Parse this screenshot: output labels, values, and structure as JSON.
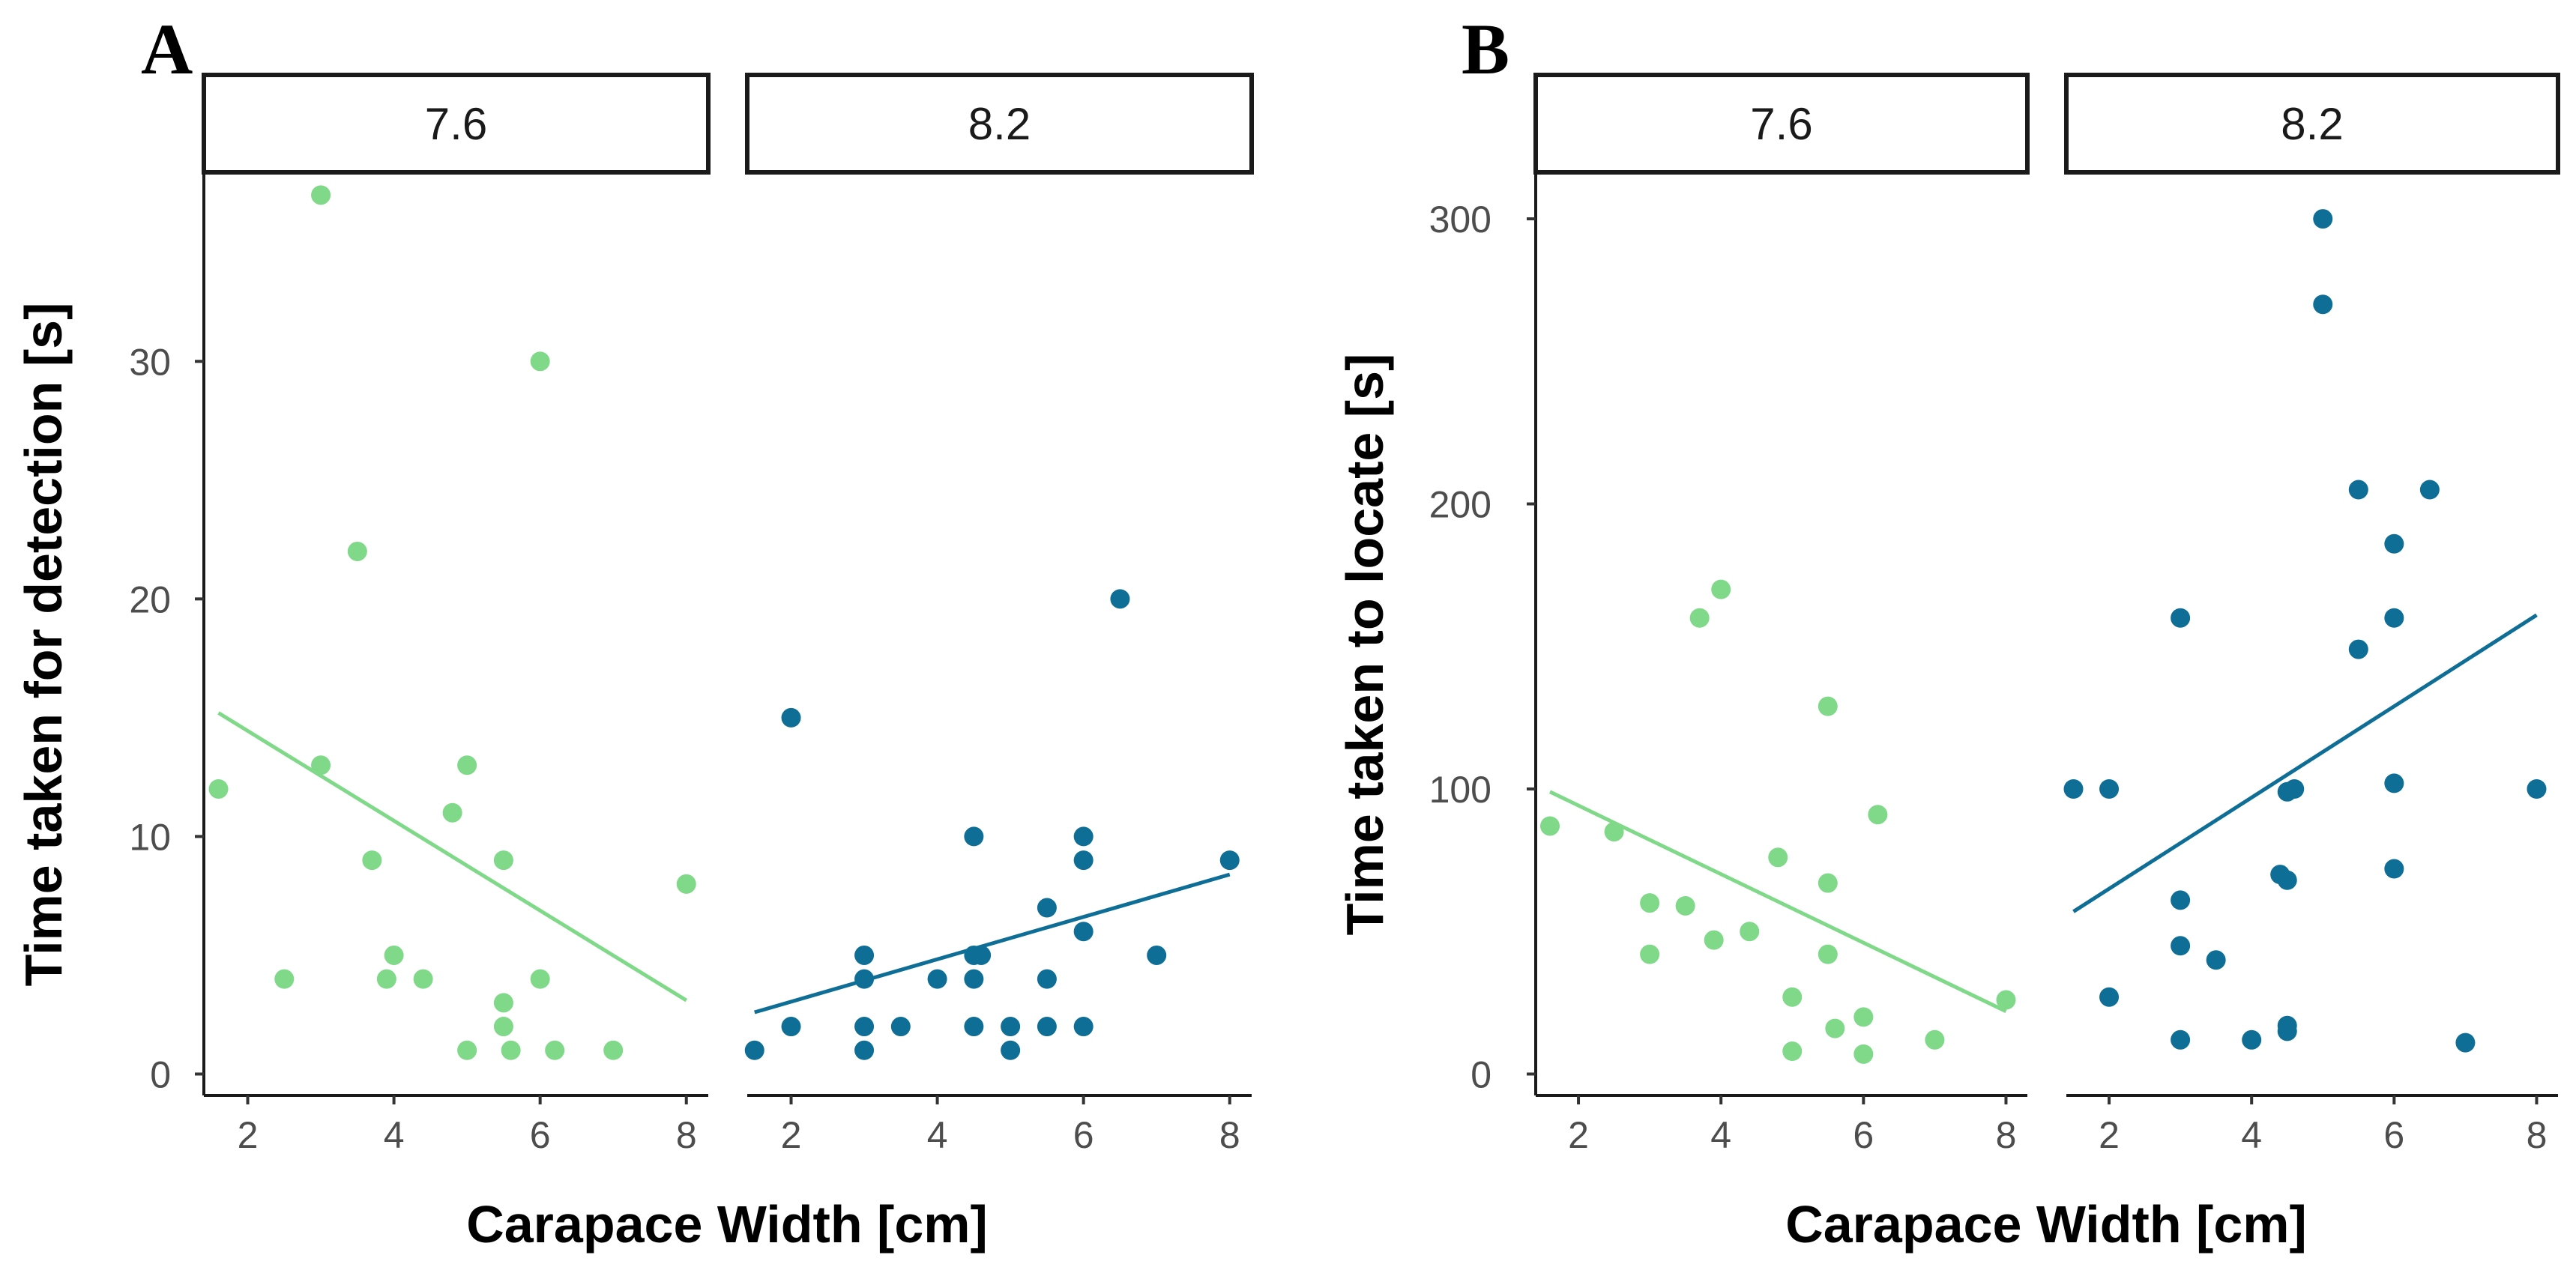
{
  "chart_data": [
    {
      "type": "scatter",
      "panel_label": "A",
      "ylabel": "Time taken for detection [s]",
      "xlabel": "Carapace Width [cm]",
      "xlim": [
        1.4,
        8.3
      ],
      "ylim": [
        -0.9,
        37.8
      ],
      "xticks": [
        2,
        4,
        6,
        8
      ],
      "yticks": [
        0,
        10,
        20,
        30
      ],
      "facets": [
        {
          "label": "7.6",
          "color": "#7fd989",
          "points": [
            [
              1.6,
              12
            ],
            [
              2.5,
              4
            ],
            [
              3,
              37
            ],
            [
              3,
              13
            ],
            [
              3.5,
              22
            ],
            [
              3.7,
              9
            ],
            [
              3.9,
              4
            ],
            [
              4,
              5
            ],
            [
              4.4,
              4
            ],
            [
              4.8,
              11
            ],
            [
              5,
              13
            ],
            [
              5,
              1
            ],
            [
              5.5,
              9
            ],
            [
              5.5,
              3
            ],
            [
              5.5,
              2
            ],
            [
              5.6,
              1
            ],
            [
              6,
              30
            ],
            [
              6,
              4
            ],
            [
              6.2,
              1
            ],
            [
              7,
              1
            ],
            [
              8,
              8
            ]
          ],
          "trend": [
            [
              1.6,
              15.2
            ],
            [
              8,
              3.1
            ]
          ]
        },
        {
          "label": "8.2",
          "color": "#0e6e96",
          "points": [
            [
              1.5,
              1
            ],
            [
              2,
              15
            ],
            [
              2,
              2
            ],
            [
              3,
              5
            ],
            [
              3,
              4
            ],
            [
              3,
              2
            ],
            [
              3,
              1
            ],
            [
              3.5,
              2
            ],
            [
              4,
              4
            ],
            [
              4.5,
              10
            ],
            [
              4.5,
              5
            ],
            [
              4.5,
              4
            ],
            [
              4.5,
              2
            ],
            [
              4.6,
              5
            ],
            [
              5,
              2
            ],
            [
              5,
              1
            ],
            [
              5.5,
              7
            ],
            [
              5.5,
              4
            ],
            [
              5.5,
              2
            ],
            [
              6,
              10
            ],
            [
              6,
              9
            ],
            [
              6,
              6
            ],
            [
              6,
              2
            ],
            [
              6.5,
              20
            ],
            [
              7,
              5
            ],
            [
              8,
              9
            ]
          ],
          "trend": [
            [
              1.5,
              2.6
            ],
            [
              8,
              8.4
            ]
          ]
        }
      ]
    },
    {
      "type": "scatter",
      "panel_label": "B",
      "ylabel": "Time taken to locate [s]",
      "xlabel": "Carapace Width [cm]",
      "xlim": [
        1.4,
        8.3
      ],
      "ylim": [
        -7.5,
        315
      ],
      "xticks": [
        2,
        4,
        6,
        8
      ],
      "yticks": [
        0,
        100,
        200,
        300
      ],
      "facets": [
        {
          "label": "7.6",
          "color": "#7fd989",
          "points": [
            [
              1.6,
              87
            ],
            [
              2.5,
              85
            ],
            [
              3,
              60
            ],
            [
              3,
              42
            ],
            [
              3.5,
              59
            ],
            [
              3.7,
              160
            ],
            [
              3.9,
              47
            ],
            [
              4,
              170
            ],
            [
              4.4,
              50
            ],
            [
              4.8,
              76
            ],
            [
              5,
              27
            ],
            [
              5,
              8
            ],
            [
              5.5,
              129
            ],
            [
              5.5,
              67
            ],
            [
              5.5,
              42
            ],
            [
              5.6,
              16
            ],
            [
              6,
              20
            ],
            [
              6,
              7
            ],
            [
              6.2,
              91
            ],
            [
              7,
              12
            ],
            [
              8,
              26
            ]
          ],
          "trend": [
            [
              1.6,
              99
            ],
            [
              8,
              22
            ]
          ]
        },
        {
          "label": "8.2",
          "color": "#0e6e96",
          "points": [
            [
              1.5,
              100
            ],
            [
              2,
              100
            ],
            [
              2,
              27
            ],
            [
              3,
              160
            ],
            [
              3,
              61
            ],
            [
              3,
              45
            ],
            [
              3,
              12
            ],
            [
              3.5,
              40
            ],
            [
              4,
              12
            ],
            [
              4.4,
              70
            ],
            [
              4.5,
              99
            ],
            [
              4.5,
              68
            ],
            [
              4.5,
              17
            ],
            [
              4.5,
              15
            ],
            [
              4.6,
              100
            ],
            [
              5,
              300
            ],
            [
              5,
              270
            ],
            [
              5.5,
              205
            ],
            [
              5.5,
              149
            ],
            [
              6,
              186
            ],
            [
              6,
              160
            ],
            [
              6,
              102
            ],
            [
              6,
              72
            ],
            [
              6.5,
              205
            ],
            [
              7,
              11
            ],
            [
              8,
              100
            ]
          ],
          "trend": [
            [
              1.5,
              57
            ],
            [
              8,
              161
            ]
          ]
        }
      ]
    }
  ]
}
